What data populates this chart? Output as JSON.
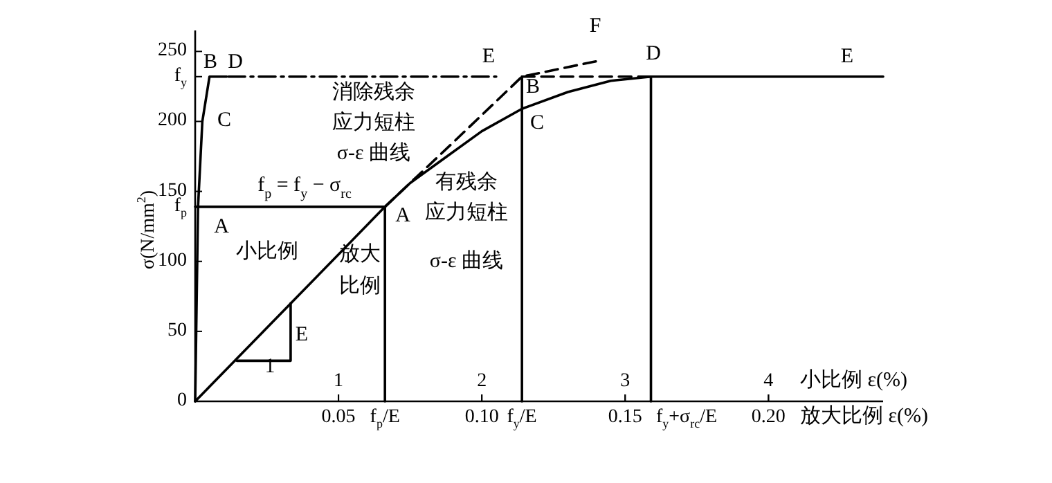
{
  "chart_data": {
    "type": "line",
    "xlabel": "放大比例 ε(%)",
    "x2label": "小比例 ε(%)",
    "ylabel": "σ(N/mm$^{2}$)",
    "xlim": [
      0,
      0.24
    ],
    "xticks": [
      {
        "value": 0.05,
        "label": "0.05"
      },
      {
        "value": 0.0662,
        "label": "f$_{p}$/E"
      },
      {
        "value": 0.1,
        "label": "0.10"
      },
      {
        "value": 0.114,
        "label": "f$_{y}$/E"
      },
      {
        "value": 0.15,
        "label": "0.15"
      },
      {
        "value": 0.159,
        "label": null
      },
      {
        "value": 0.2,
        "label": "0.20"
      }
    ],
    "x2lim": [
      0,
      4.8
    ],
    "x2ticks": [
      1,
      2,
      3,
      4
    ],
    "ylim": [
      0,
      265
    ],
    "yticks": [
      0,
      50,
      100,
      {
        "value": 139,
        "label": "f$_{p}$"
      },
      150,
      200,
      {
        "value": 232,
        "label": "f$_{y}$"
      },
      250
    ],
    "series": [
      {
        "color": "#000000",
        "line_style": "solid",
        "x": [
          0,
          0.0662,
          0.075,
          0.0865,
          0.1,
          0.114,
          0.13,
          0.145,
          0.159,
          0.24
        ],
        "values": [
          0,
          139,
          156,
          173,
          193,
          209,
          221,
          229,
          232,
          232
        ]
      },
      {
        "color": "#000000",
        "line_style": "dashed",
        "x": [
          0.0662,
          0.09,
          0.114,
          0.14
        ],
        "values": [
          139,
          185,
          232,
          243
        ]
      },
      {
        "color": "#000000",
        "line_style": "dashed",
        "x": [
          0.114,
          0.159
        ],
        "values": [
          232,
          232
        ]
      },
      {
        "color": "#000000",
        "line_style": "solid",
        "axis": "x2",
        "x": [
          0,
          0.02,
          0.05,
          0.1,
          0.22
        ],
        "values": [
          0,
          139,
          200,
          232,
          232
        ]
      },
      {
        "color": "#000000",
        "line_style": "dashdot",
        "x": [
          0.0116,
          0.105
        ],
        "values": [
          232,
          232
        ]
      },
      {
        "color": "#000000",
        "line_style": "solid",
        "x": [
          0,
          0.0662
        ],
        "values": [
          139,
          139
        ]
      },
      {
        "color": "#000000",
        "line_style": "solid",
        "x": [
          0.0662,
          0.0662
        ],
        "values": [
          0,
          139
        ]
      },
      {
        "color": "#000000",
        "line_style": "solid",
        "x": [
          0.114,
          0.114
        ],
        "values": [
          0,
          232
        ]
      },
      {
        "color": "#000000",
        "line_style": "solid",
        "x": [
          0.159,
          0.159
        ],
        "values": [
          0,
          232
        ]
      },
      {
        "color": "#000000",
        "line_style": "solid",
        "x": [
          0.0145,
          0.0333,
          0.0333
        ],
        "values": [
          29,
          29,
          70
        ]
      }
    ],
    "annotations": [
      "B",
      "D",
      "C",
      "A",
      "E",
      "F",
      "B",
      "C",
      "A",
      "D",
      "E",
      "消除残余应力短柱σ-ε 曲线",
      "有残余应力短柱σ-ε 曲线",
      "f$_{p}$ = f$_{y}$ − σ$_{rc}$",
      "小比例",
      "放大比例",
      "E",
      "1",
      "f$_{y}$+σ$_{rc}$/E"
    ]
  }
}
